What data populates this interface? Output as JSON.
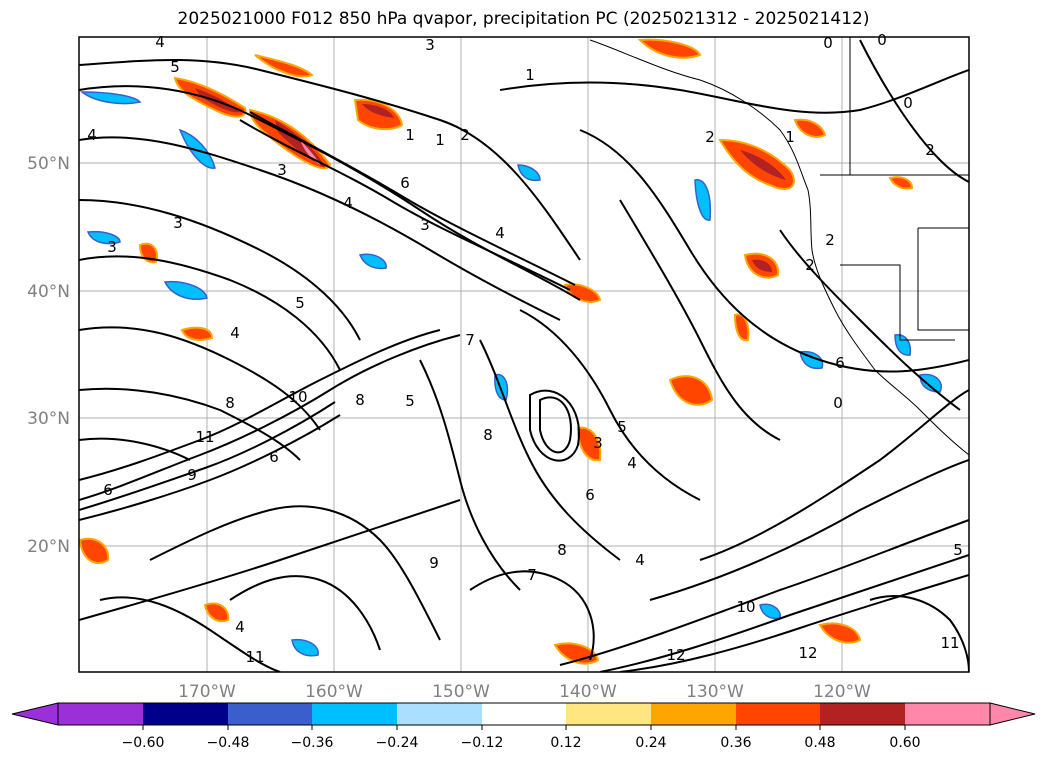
{
  "title": "2025021000 F012 850 hPa qvapor, precipitation PC (2025021312 - 2025021412)",
  "map": {
    "lat_labels": [
      "50°N",
      "40°N",
      "30°N",
      "20°N"
    ],
    "lon_labels": [
      "170°W",
      "160°W",
      "150°W",
      "140°W",
      "130°W",
      "120°W"
    ],
    "lat_values": [
      50,
      40,
      30,
      20
    ],
    "lon_values": [
      -170,
      -160,
      -150,
      -140,
      -130,
      -120
    ],
    "extent": {
      "lon_min": -170,
      "lon_max": -112,
      "lat_min": 10,
      "lat_max": 60
    },
    "contour_labels": [
      "4",
      "5",
      "3",
      "3",
      "2",
      "1",
      "1",
      "2",
      "0",
      "0",
      "4",
      "3",
      "3",
      "1",
      "2",
      "6",
      "4",
      "4",
      "3",
      "5",
      "4",
      "7",
      "8",
      "10",
      "11",
      "9",
      "8",
      "8",
      "6",
      "5",
      "6",
      "7",
      "5",
      "4",
      "4",
      "6",
      "8",
      "9",
      "10",
      "12",
      "12",
      "11",
      "11",
      "0",
      "2",
      "2",
      "1",
      "6",
      "3",
      "0",
      "5",
      "4"
    ],
    "grid_color": "#b0b0b0"
  },
  "colorbar": {
    "ticks": [
      "−0.60",
      "−0.48",
      "−0.36",
      "−0.24",
      "−0.12",
      "0.12",
      "0.24",
      "0.36",
      "0.48",
      "0.60"
    ],
    "colors": [
      "#9b30d9",
      "#00008b",
      "#3a5fcd",
      "#00bfff",
      "#aadfff",
      "#ffffff",
      "#ffe680",
      "#ffa500",
      "#ff4500",
      "#b22222",
      "#ff88aa",
      "#ff88aa"
    ],
    "extend": "both"
  }
}
